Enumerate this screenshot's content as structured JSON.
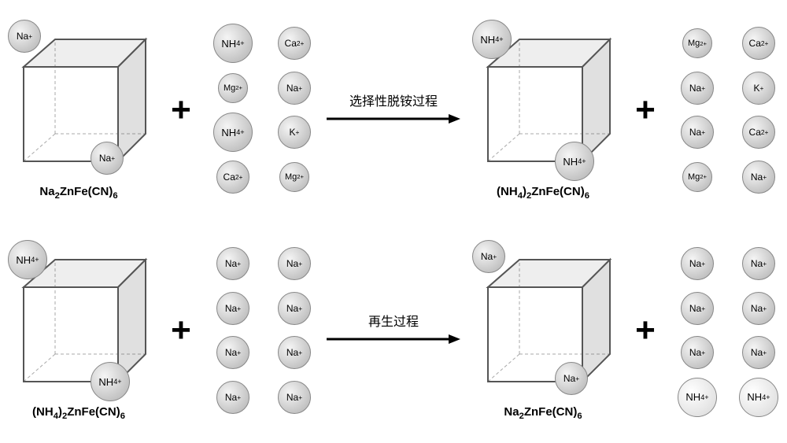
{
  "colors": {
    "ion_bg": "radial-gradient(circle at 35% 35%, #f5f5f5, #b0b0b0)",
    "ion_bg_white": "radial-gradient(circle at 35% 35%, #ffffff, #d8d8d8)",
    "cube_fill_top": "#eeeeee",
    "cube_fill_side": "#e0e0e0",
    "cube_fill_front": "#ffffff",
    "cube_stroke": "#555555"
  },
  "row1": {
    "cube_left": {
      "ion_top": "Na+",
      "ion_bottom": "Na+",
      "label": "Na2ZnFe(CN)6"
    },
    "ions_left": [
      {
        "t": "NH4+",
        "sz": "lg"
      },
      {
        "t": "Ca2+",
        "sz": "md"
      },
      {
        "t": "Mg2+",
        "sz": "sm"
      },
      {
        "t": "Na+",
        "sz": "md"
      },
      {
        "t": "NH4+",
        "sz": "lg"
      },
      {
        "t": "K+",
        "sz": "md"
      },
      {
        "t": "Ca2+",
        "sz": "md"
      },
      {
        "t": "Mg2+",
        "sz": "sm"
      }
    ],
    "arrow_label": "选择性脱铵过程",
    "cube_right": {
      "ion_top": "NH4+",
      "ion_bottom": "NH4+",
      "label": "(NH4)2ZnFe(CN)6"
    },
    "ions_right": [
      {
        "t": "Mg2+",
        "sz": "sm"
      },
      {
        "t": "Ca2+",
        "sz": "md"
      },
      {
        "t": "Na+",
        "sz": "md"
      },
      {
        "t": "K+",
        "sz": "md"
      },
      {
        "t": "Na+",
        "sz": "md"
      },
      {
        "t": "Ca2+",
        "sz": "md"
      },
      {
        "t": "Mg2+",
        "sz": "sm"
      },
      {
        "t": "Na+",
        "sz": "md"
      }
    ]
  },
  "row2": {
    "cube_left": {
      "ion_top": "NH4+",
      "ion_bottom": "NH4+",
      "label": "(NH4)2ZnFe(CN)6"
    },
    "ions_left": [
      {
        "t": "Na+",
        "sz": "md"
      },
      {
        "t": "Na+",
        "sz": "md"
      },
      {
        "t": "Na+",
        "sz": "md"
      },
      {
        "t": "Na+",
        "sz": "md"
      },
      {
        "t": "Na+",
        "sz": "md"
      },
      {
        "t": "Na+",
        "sz": "md"
      },
      {
        "t": "Na+",
        "sz": "md"
      },
      {
        "t": "Na+",
        "sz": "md"
      }
    ],
    "arrow_label": "再生过程",
    "cube_right": {
      "ion_top": "Na+",
      "ion_bottom": "Na+",
      "label": "Na2ZnFe(CN)6"
    },
    "ions_right": [
      {
        "t": "Na+",
        "sz": "md"
      },
      {
        "t": "Na+",
        "sz": "md"
      },
      {
        "t": "Na+",
        "sz": "md"
      },
      {
        "t": "Na+",
        "sz": "md"
      },
      {
        "t": "Na+",
        "sz": "md"
      },
      {
        "t": "Na+",
        "sz": "md"
      },
      {
        "t": "NH4+",
        "sz": "lg",
        "w": true
      },
      {
        "t": "NH4+",
        "sz": "lg",
        "w": true
      }
    ]
  },
  "plus": "+"
}
